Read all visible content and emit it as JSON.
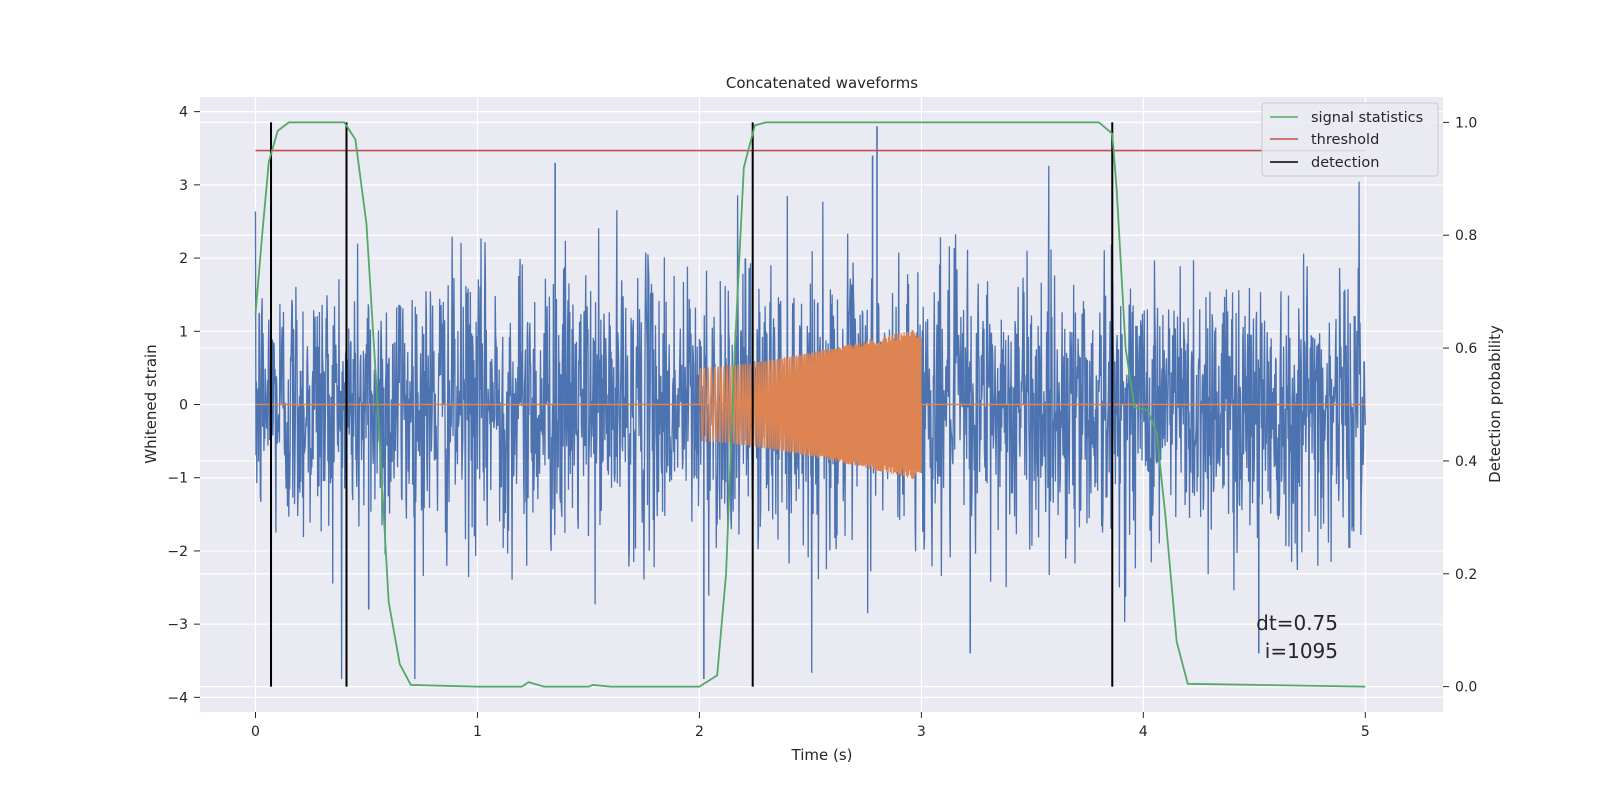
{
  "chart_data": {
    "type": "line",
    "title": "Concatenated waveforms",
    "xlabel": "Time (s)",
    "ylabel_left": "Whitened strain",
    "ylabel_right": "Detection probability",
    "xlim": [
      -0.25,
      5.35
    ],
    "ylim_left": [
      -4.2,
      4.2
    ],
    "ylim_right": [
      -0.045,
      1.045
    ],
    "x_ticks": [
      0,
      1,
      2,
      3,
      4,
      5
    ],
    "y_ticks_left": [
      -4,
      -3,
      -2,
      -1,
      0,
      1,
      2,
      3,
      4
    ],
    "y_ticks_right": [
      0.0,
      0.2,
      0.4,
      0.6,
      0.8,
      1.0
    ],
    "grid": true,
    "legend_position": "top-right",
    "colors": {
      "strain": "#4c72b0",
      "injected": "#dd8452",
      "signal_statistics": "#55a868",
      "threshold": "#c44e52",
      "detection": "#000000",
      "background": "#eaeaf2",
      "grid": "#ffffff"
    },
    "series": [
      {
        "name": "signal statistics",
        "axis": "right",
        "x": [
          0,
          0.03,
          0.06,
          0.1,
          0.15,
          0.4,
          0.45,
          0.5,
          0.55,
          0.6,
          0.65,
          0.7,
          1.0,
          1.2,
          1.23,
          1.3,
          1.5,
          1.52,
          1.6,
          2.0,
          2.08,
          2.12,
          2.16,
          2.2,
          2.25,
          2.3,
          2.4,
          3.8,
          3.86,
          3.88,
          3.92,
          3.96,
          4.02,
          4.06,
          4.1,
          4.15,
          4.2,
          5.0
        ],
        "y": [
          0.66,
          0.8,
          0.93,
          0.985,
          1.0,
          1.0,
          0.97,
          0.82,
          0.5,
          0.15,
          0.04,
          0.003,
          0.0,
          0.0,
          0.008,
          0.0,
          0.0,
          0.003,
          0.0,
          0.0,
          0.02,
          0.2,
          0.6,
          0.92,
          0.995,
          1.0,
          1.0,
          1.0,
          0.98,
          0.88,
          0.6,
          0.495,
          0.49,
          0.45,
          0.3,
          0.08,
          0.005,
          0.0
        ]
      },
      {
        "name": "threshold",
        "axis": "right",
        "x": [
          0,
          5
        ],
        "y": [
          0.95,
          0.95
        ]
      },
      {
        "name": "detection",
        "axis": "right",
        "x": [
          0.07,
          0.41,
          2.24,
          3.86
        ],
        "y_range": [
          0.0,
          1.0
        ]
      }
    ],
    "strain": {
      "x_range": [
        0,
        5
      ],
      "typical_amplitude": 1.0,
      "max": 3.8,
      "min": -3.75
    },
    "injected_waveform": {
      "x_range": [
        2.0,
        3.0
      ],
      "start_amplitude": 0.5,
      "end_amplitude": 1.05
    },
    "annotation": "dt=0.75\ni=1095"
  },
  "title": "Concatenated waveforms",
  "xlabel": "Time (s)",
  "ylabel_left": "Whitened strain",
  "ylabel_right": "Detection probability",
  "legend": {
    "items": [
      "signal statistics",
      "threshold",
      "detection"
    ]
  },
  "annotation": {
    "line1": "dt=0.75",
    "line2": "i=1095"
  }
}
